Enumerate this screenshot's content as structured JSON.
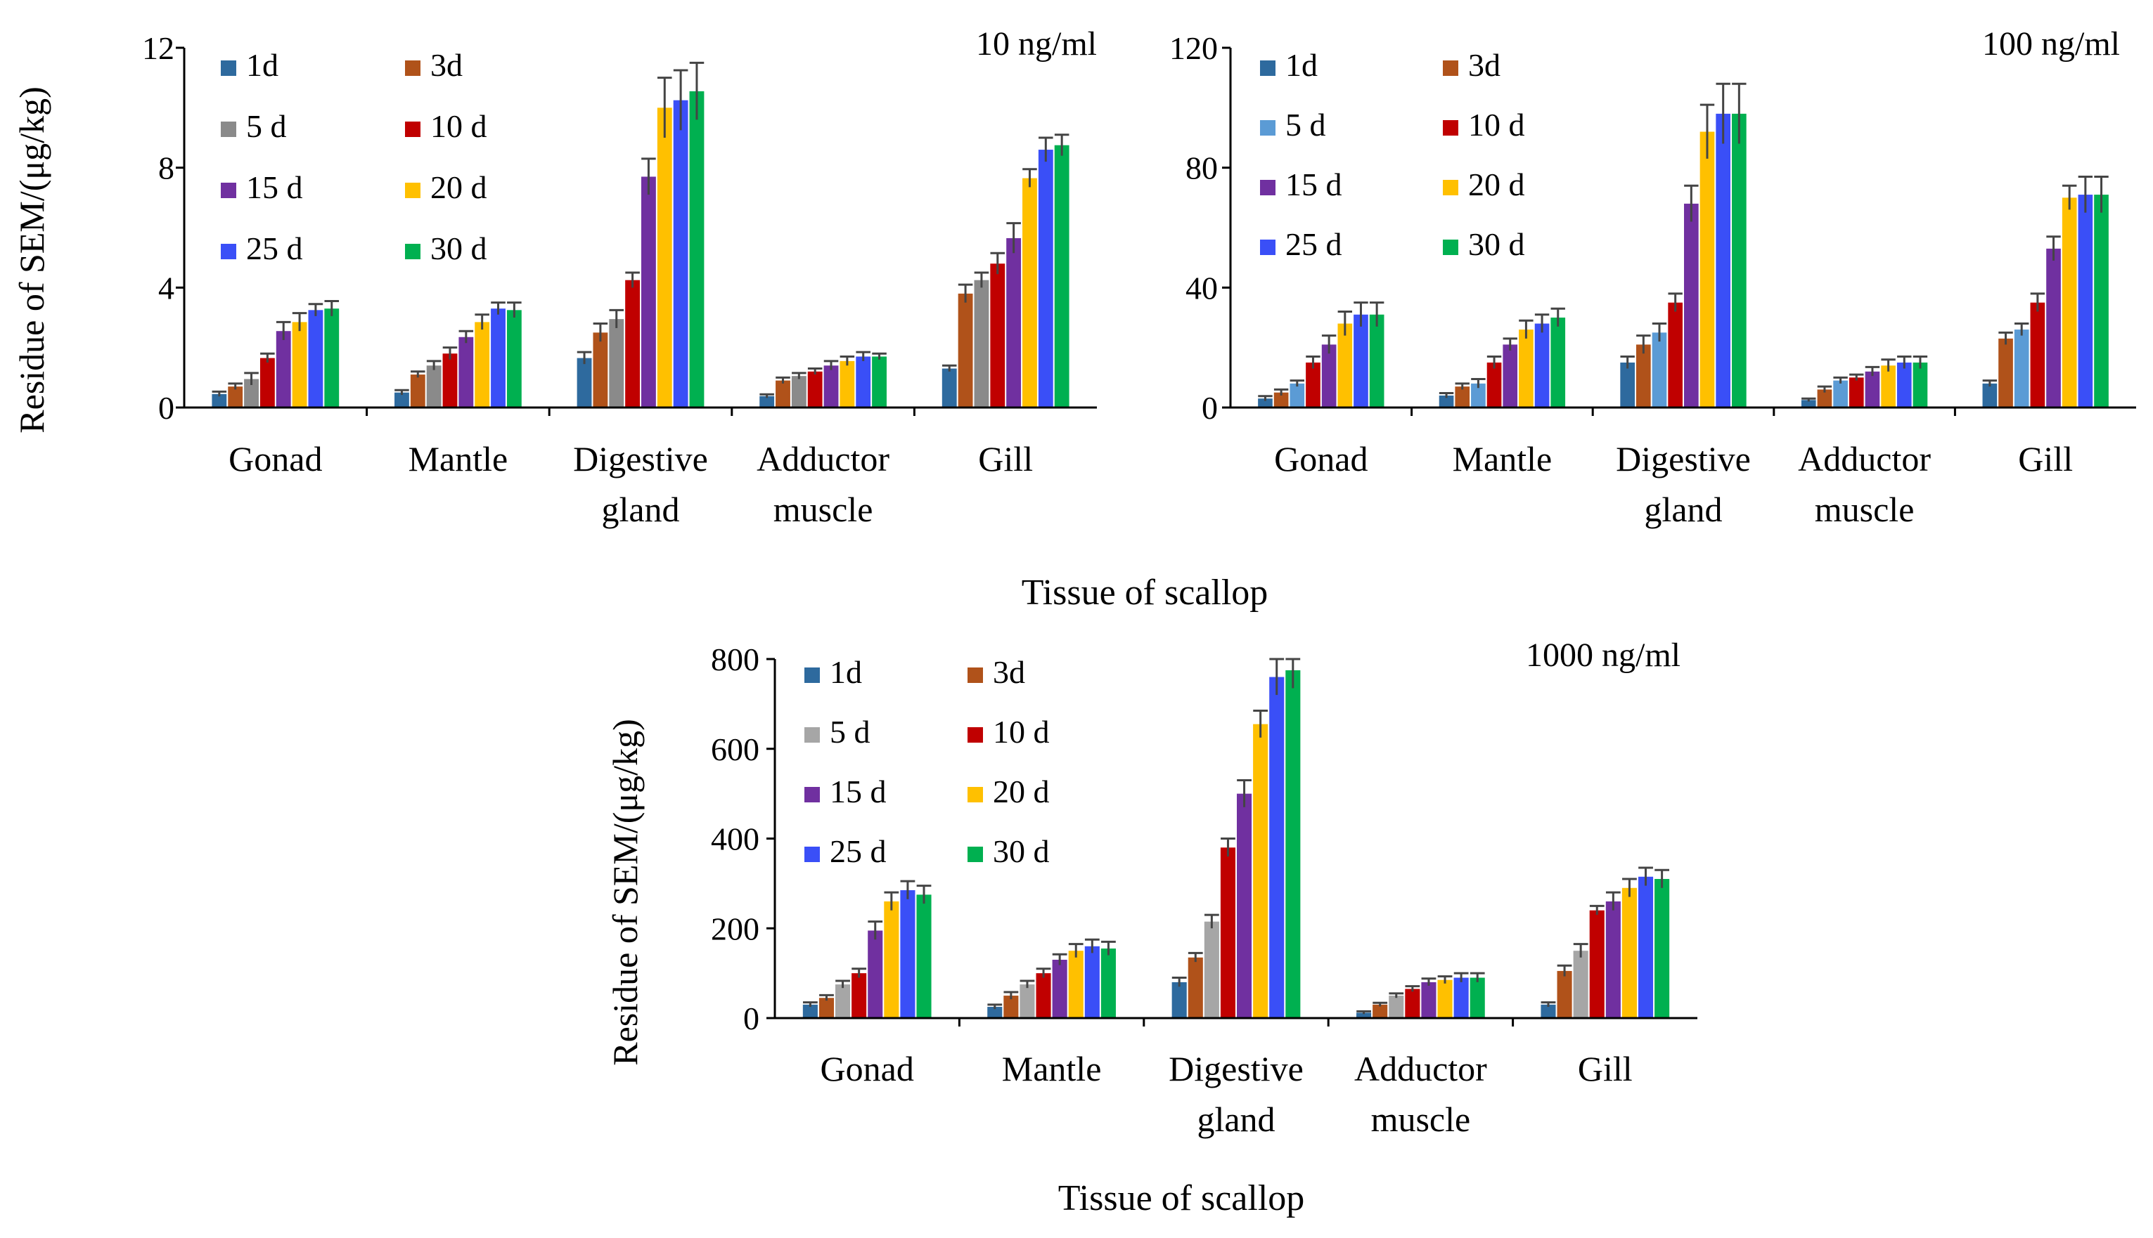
{
  "shared": {
    "ylabel": "Residue of SEM/(μg/kg)",
    "xlabel": "Tissue of scallop",
    "categories": [
      "Gonad",
      "Mantle",
      "Digestive gland",
      "Adductor muscle",
      "Gill"
    ],
    "category_lines": [
      [
        "Gonad"
      ],
      [
        "Mantle"
      ],
      [
        "Digestive",
        "gland"
      ],
      [
        "Adductor",
        "muscle"
      ],
      [
        "Gill"
      ]
    ]
  },
  "chart_data": [
    {
      "type": "bar",
      "title": "10 ng/ml",
      "xlabel": "Tissue of scallop",
      "ylabel": "Residue of SEM/(μg/kg)",
      "categories": [
        "Gonad",
        "Mantle",
        "Digestive gland",
        "Adductor muscle",
        "Gill"
      ],
      "ylim": [
        0,
        12
      ],
      "yticks": [
        0,
        4,
        8,
        12
      ],
      "legend": "top-left",
      "series": [
        {
          "name": "1d",
          "color": "#2e6a9e",
          "values": [
            0.45,
            0.5,
            1.65,
            0.38,
            1.3
          ],
          "errors": [
            0.08,
            0.08,
            0.2,
            0.06,
            0.1
          ]
        },
        {
          "name": "3d",
          "color": "#b0521a",
          "values": [
            0.7,
            1.1,
            2.5,
            0.9,
            3.8
          ],
          "errors": [
            0.1,
            0.1,
            0.3,
            0.1,
            0.3
          ]
        },
        {
          "name": "5 d",
          "color": "#8a8a8a",
          "values": [
            0.95,
            1.4,
            2.95,
            1.05,
            4.25
          ],
          "errors": [
            0.2,
            0.15,
            0.3,
            0.1,
            0.25
          ]
        },
        {
          "name": "10 d",
          "color": "#c00000",
          "values": [
            1.65,
            1.8,
            4.25,
            1.2,
            4.8
          ],
          "errors": [
            0.15,
            0.2,
            0.25,
            0.1,
            0.35
          ]
        },
        {
          "name": "15 d",
          "color": "#7030a0",
          "values": [
            2.55,
            2.35,
            7.7,
            1.4,
            5.65
          ],
          "errors": [
            0.3,
            0.2,
            0.6,
            0.15,
            0.5
          ]
        },
        {
          "name": "20 d",
          "color": "#ffc000",
          "values": [
            2.85,
            2.85,
            10.0,
            1.55,
            7.65
          ],
          "errors": [
            0.3,
            0.25,
            1.0,
            0.15,
            0.3
          ]
        },
        {
          "name": "25 d",
          "color": "#3a4ff7",
          "values": [
            3.25,
            3.3,
            10.25,
            1.7,
            8.6
          ],
          "errors": [
            0.2,
            0.2,
            1.0,
            0.15,
            0.4
          ]
        },
        {
          "name": "30 d",
          "color": "#00b050",
          "values": [
            3.3,
            3.25,
            10.55,
            1.7,
            8.75
          ],
          "errors": [
            0.25,
            0.25,
            0.95,
            0.1,
            0.35
          ]
        }
      ]
    },
    {
      "type": "bar",
      "title": "100 ng/ml",
      "xlabel": "Tissue of scallop",
      "ylabel": "Residue of SEM/(μg/kg)",
      "categories": [
        "Gonad",
        "Mantle",
        "Digestive gland",
        "Adductor muscle",
        "Gill"
      ],
      "ylim": [
        0,
        120
      ],
      "yticks": [
        0,
        40,
        80,
        120
      ],
      "legend": "top-left",
      "series": [
        {
          "name": "1d",
          "color": "#2e6a9e",
          "values": [
            3,
            4,
            15,
            2.5,
            8
          ],
          "errors": [
            0.8,
            0.8,
            2,
            0.5,
            1
          ]
        },
        {
          "name": "3d",
          "color": "#b0521a",
          "values": [
            5,
            7,
            21,
            6,
            23
          ],
          "errors": [
            1,
            1,
            3,
            1,
            2
          ]
        },
        {
          "name": "5 d",
          "color": "#5b9bd5",
          "values": [
            8,
            8,
            25,
            9,
            26
          ],
          "errors": [
            1,
            1.5,
            3,
            1,
            2
          ]
        },
        {
          "name": "10 d",
          "color": "#c00000",
          "values": [
            15,
            15,
            35,
            10,
            35
          ],
          "errors": [
            2,
            2,
            3,
            1,
            3
          ]
        },
        {
          "name": "15 d",
          "color": "#7030a0",
          "values": [
            21,
            21,
            68,
            12,
            53
          ],
          "errors": [
            3,
            2,
            6,
            1.5,
            4
          ]
        },
        {
          "name": "20 d",
          "color": "#ffc000",
          "values": [
            28,
            26,
            92,
            14,
            70
          ],
          "errors": [
            4,
            3,
            9,
            2,
            4
          ]
        },
        {
          "name": "25 d",
          "color": "#3a4ff7",
          "values": [
            31,
            28,
            98,
            15,
            71
          ],
          "errors": [
            4,
            3,
            10,
            2,
            6
          ]
        },
        {
          "name": "30 d",
          "color": "#00b050",
          "values": [
            31,
            30,
            98,
            15,
            71
          ],
          "errors": [
            4,
            3,
            10,
            2,
            6
          ]
        }
      ]
    },
    {
      "type": "bar",
      "title": "1000 ng/ml",
      "xlabel": "Tissue of scallop",
      "ylabel": "Residue of SEM/(μg/kg)",
      "categories": [
        "Gonad",
        "Mantle",
        "Digestive gland",
        "Adductor muscle",
        "Gill"
      ],
      "ylim": [
        0,
        800
      ],
      "yticks": [
        0,
        200,
        400,
        600,
        800
      ],
      "legend": "top-left",
      "series": [
        {
          "name": "1d",
          "color": "#2e6a9e",
          "values": [
            30,
            25,
            80,
            12,
            30
          ],
          "errors": [
            5,
            5,
            10,
            3,
            5
          ]
        },
        {
          "name": "3d",
          "color": "#b0521a",
          "values": [
            45,
            50,
            135,
            30,
            105
          ],
          "errors": [
            6,
            8,
            10,
            4,
            12
          ]
        },
        {
          "name": "5 d",
          "color": "#a6a6a6",
          "values": [
            75,
            75,
            215,
            50,
            150
          ],
          "errors": [
            8,
            8,
            15,
            5,
            15
          ]
        },
        {
          "name": "10 d",
          "color": "#c00000",
          "values": [
            100,
            100,
            380,
            65,
            240
          ],
          "errors": [
            10,
            10,
            20,
            6,
            10
          ]
        },
        {
          "name": "15 d",
          "color": "#7030a0",
          "values": [
            195,
            130,
            500,
            80,
            260
          ],
          "errors": [
            20,
            12,
            30,
            8,
            20
          ]
        },
        {
          "name": "20 d",
          "color": "#ffc000",
          "values": [
            260,
            150,
            655,
            85,
            290
          ],
          "errors": [
            20,
            15,
            30,
            8,
            20
          ]
        },
        {
          "name": "25 d",
          "color": "#3a4ff7",
          "values": [
            285,
            160,
            760,
            90,
            315
          ],
          "errors": [
            20,
            15,
            40,
            10,
            20
          ]
        },
        {
          "name": "30 d",
          "color": "#00b050",
          "values": [
            275,
            155,
            775,
            90,
            310
          ],
          "errors": [
            20,
            15,
            40,
            10,
            20
          ]
        }
      ]
    }
  ]
}
